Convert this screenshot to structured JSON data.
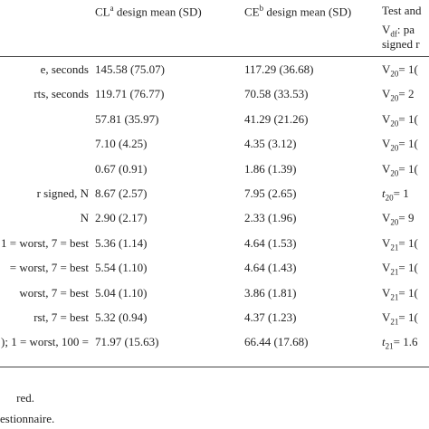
{
  "table": {
    "header": [
      {
        "main": "CL",
        "sup": "a",
        "rest": " design mean (SD)"
      },
      {
        "main": "CE",
        "sup": "b",
        "rest": " design mean (SD)"
      },
      {
        "main": "Test and"
      }
    ],
    "header_sub": {
      "stat": "V",
      "df": "df",
      "rest": ": pa",
      "line2": "signed r"
    },
    "rows": [
      {
        "label": "e, seconds",
        "cl": "145.58 (75.07)",
        "ce": "117.29 (36.68)",
        "stat": "V",
        "df": "20",
        "rest": "= 1("
      },
      {
        "label": "rts, seconds",
        "cl": "119.71 (76.77)",
        "ce": "70.58 (33.53)",
        "stat": "V",
        "df": "20",
        "rest": "= 2"
      },
      {
        "label": null,
        "cl": "57.81 (35.97)",
        "ce": "41.29 (21.26)",
        "stat": "V",
        "df": "20",
        "rest": "= 1("
      },
      {
        "label": null,
        "cl": "7.10 (4.25)",
        "ce": "4.35 (3.12)",
        "stat": "V",
        "df": "20",
        "rest": "= 1("
      },
      {
        "label": null,
        "cl": "0.67 (0.91)",
        "ce": "1.86 (1.39)",
        "stat": "V",
        "df": "20",
        "rest": "= 1("
      },
      {
        "label": "r signed, N",
        "cl": "8.67 (2.57)",
        "ce": "7.95 (2.65)",
        "stat": "t",
        "df": "20",
        "rest": "= 1"
      },
      {
        "label": "N",
        "cl": "2.90 (2.17)",
        "ce": "2.33 (1.96)",
        "stat": "V",
        "df": "20",
        "rest": "= 9"
      },
      {
        "label": "1 = worst, 7 = best",
        "cl": "5.36 (1.14)",
        "ce": "4.64 (1.53)",
        "stat": "V",
        "df": "21",
        "rest": "= 1("
      },
      {
        "label": "= worst, 7 = best",
        "cl": "5.54 (1.10)",
        "ce": "4.64 (1.43)",
        "stat": "V",
        "df": "21",
        "rest": "= 1("
      },
      {
        "label": "worst, 7 = best",
        "cl": "5.04 (1.10)",
        "ce": "3.86 (1.81)",
        "stat": "V",
        "df": "21",
        "rest": "= 1("
      },
      {
        "label": "rst, 7 = best",
        "cl": "5.32 (0.94)",
        "ce": "4.37 (1.23)",
        "stat": "V",
        "df": "21",
        "rest": "= 1("
      },
      {
        "label": "); 1 = worst, 100 =",
        "cl": "71.97 (15.63)",
        "ce": "66.44 (17.68)",
        "stat": "t",
        "df": "21",
        "rest": "= 1.6"
      }
    ]
  },
  "footnotes": [
    "red.",
    "estionnaire."
  ]
}
